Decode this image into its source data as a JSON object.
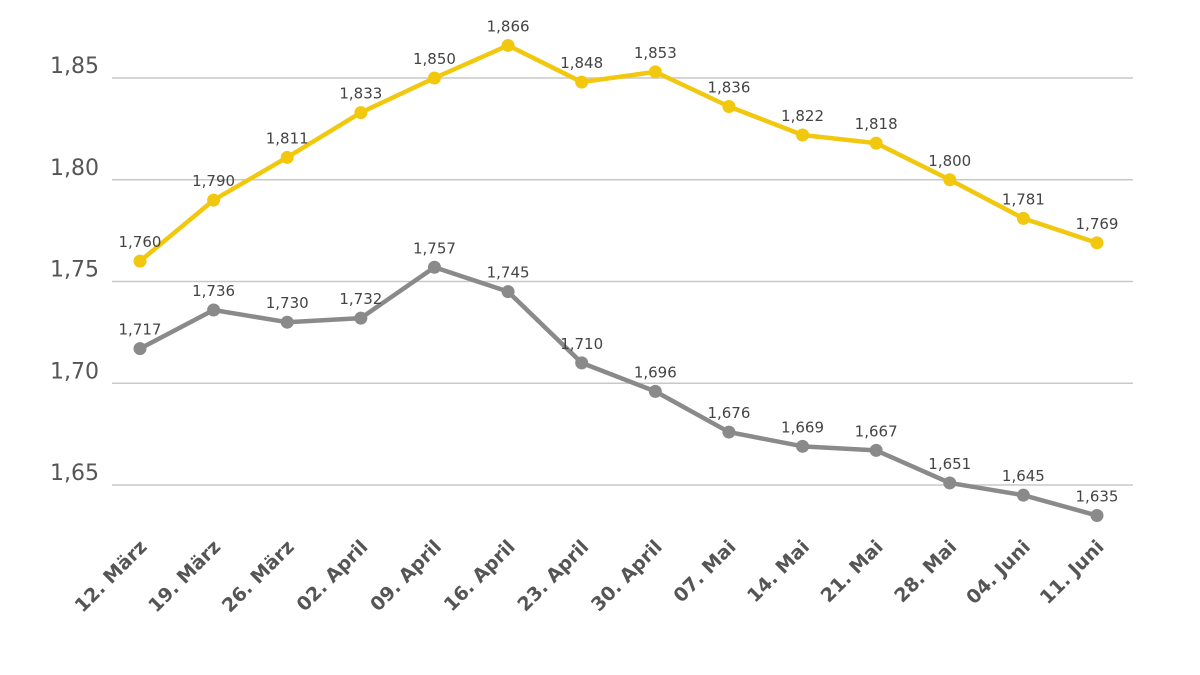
{
  "chart_data": {
    "type": "line",
    "title": "",
    "xlabel": "",
    "ylabel": "",
    "ylim": [
      1.62,
      1.87
    ],
    "grid": true,
    "yticks": [
      {
        "value": 1.65,
        "label": "1,65"
      },
      {
        "value": 1.7,
        "label": "1,70"
      },
      {
        "value": 1.75,
        "label": "1,75"
      },
      {
        "value": 1.8,
        "label": "1,80"
      },
      {
        "value": 1.85,
        "label": "1,85"
      }
    ],
    "categories": [
      "12. März",
      "19. März",
      "26. März",
      "02. April",
      "09. April",
      "16. April",
      "23. April",
      "30. April",
      "07. Mai",
      "14. Mai",
      "21. Mai",
      "28. Mai",
      "04. Juni",
      "11. Juni"
    ],
    "series": [
      {
        "name": "yellow",
        "color": "#f2c80f",
        "values": [
          1.76,
          1.79,
          1.811,
          1.833,
          1.85,
          1.866,
          1.848,
          1.853,
          1.836,
          1.822,
          1.818,
          1.8,
          1.781,
          1.769
        ],
        "labels": [
          "1,760",
          "1,790",
          "1,811",
          "1,833",
          "1,850",
          "1,866",
          "1,848",
          "1,853",
          "1,836",
          "1,822",
          "1,818",
          "1,800",
          "1,781",
          "1,769"
        ]
      },
      {
        "name": "gray",
        "color": "#8a8a8a",
        "values": [
          1.717,
          1.736,
          1.73,
          1.732,
          1.757,
          1.745,
          1.71,
          1.696,
          1.676,
          1.669,
          1.667,
          1.651,
          1.645,
          1.635
        ],
        "labels": [
          "1,717",
          "1,736",
          "1,730",
          "1,732",
          "1,757",
          "1,745",
          "1,710",
          "1,696",
          "1,676",
          "1,669",
          "1,667",
          "1,651",
          "1,645",
          "1,635"
        ]
      }
    ]
  }
}
